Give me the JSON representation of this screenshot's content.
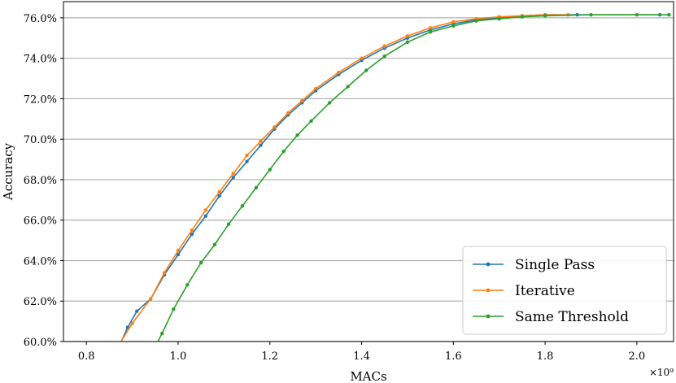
{
  "chart_data": {
    "type": "line",
    "xlabel": "MACs",
    "ylabel": "Accuracy",
    "x_multiplier_label": "×10⁹",
    "xlim": [
      0.75,
      2.08
    ],
    "ylim": [
      60.0,
      76.8
    ],
    "x_ticks": [
      0.8,
      1.0,
      1.2,
      1.4,
      1.6,
      1.8,
      2.0
    ],
    "x_tick_labels": [
      "0.8",
      "1.0",
      "1.2",
      "1.4",
      "1.6",
      "1.8",
      "2.0"
    ],
    "y_ticks": [
      60,
      62,
      64,
      66,
      68,
      70,
      72,
      74,
      76
    ],
    "y_tick_labels": [
      "60.0%",
      "62.0%",
      "64.0%",
      "66.0%",
      "68.0%",
      "70.0%",
      "72.0%",
      "74.0%",
      "76.0%"
    ],
    "grid": "horizontal",
    "legend_position": "bottom-right",
    "series": [
      {
        "name": "Single Pass",
        "color": "#1f77b4",
        "x": [
          0.75,
          0.87,
          0.89,
          0.91,
          0.94,
          0.97,
          1.0,
          1.03,
          1.06,
          1.09,
          1.12,
          1.15,
          1.18,
          1.21,
          1.24,
          1.27,
          1.3,
          1.35,
          1.4,
          1.45,
          1.5,
          1.55,
          1.6,
          1.65,
          1.7,
          1.75,
          1.8,
          1.87,
          2.05
        ],
        "y": [
          59.3,
          59.7,
          60.7,
          61.5,
          62.1,
          63.3,
          64.3,
          65.3,
          66.2,
          67.2,
          68.1,
          68.9,
          69.7,
          70.5,
          71.2,
          71.8,
          72.4,
          73.2,
          73.9,
          74.5,
          75.0,
          75.4,
          75.7,
          75.9,
          76.0,
          76.1,
          76.15,
          76.15,
          76.15
        ]
      },
      {
        "name": "Iterative",
        "color": "#ff7f0e",
        "x": [
          0.75,
          0.87,
          0.9,
          0.94,
          0.97,
          1.0,
          1.03,
          1.06,
          1.09,
          1.12,
          1.15,
          1.18,
          1.21,
          1.24,
          1.27,
          1.3,
          1.35,
          1.4,
          1.45,
          1.5,
          1.55,
          1.6,
          1.65,
          1.7,
          1.75,
          1.8,
          1.85
        ],
        "y": [
          59.2,
          59.8,
          60.9,
          62.1,
          63.4,
          64.5,
          65.5,
          66.5,
          67.4,
          68.3,
          69.2,
          69.9,
          70.6,
          71.3,
          71.9,
          72.5,
          73.3,
          74.0,
          74.6,
          75.1,
          75.5,
          75.8,
          75.95,
          76.05,
          76.1,
          76.15,
          76.15
        ]
      },
      {
        "name": "Same Threshold",
        "color": "#2ca02c",
        "x": [
          0.75,
          0.945,
          0.965,
          0.99,
          1.02,
          1.05,
          1.08,
          1.11,
          1.14,
          1.17,
          1.2,
          1.23,
          1.26,
          1.29,
          1.33,
          1.37,
          1.41,
          1.45,
          1.5,
          1.55,
          1.6,
          1.65,
          1.7,
          1.75,
          1.8,
          1.9,
          2.0,
          2.07
        ],
        "y": [
          59.1,
          59.5,
          60.4,
          61.6,
          62.8,
          63.9,
          64.8,
          65.8,
          66.7,
          67.6,
          68.5,
          69.4,
          70.2,
          70.9,
          71.8,
          72.6,
          73.4,
          74.1,
          74.8,
          75.3,
          75.6,
          75.85,
          75.95,
          76.05,
          76.1,
          76.15,
          76.15,
          76.15
        ]
      }
    ]
  }
}
